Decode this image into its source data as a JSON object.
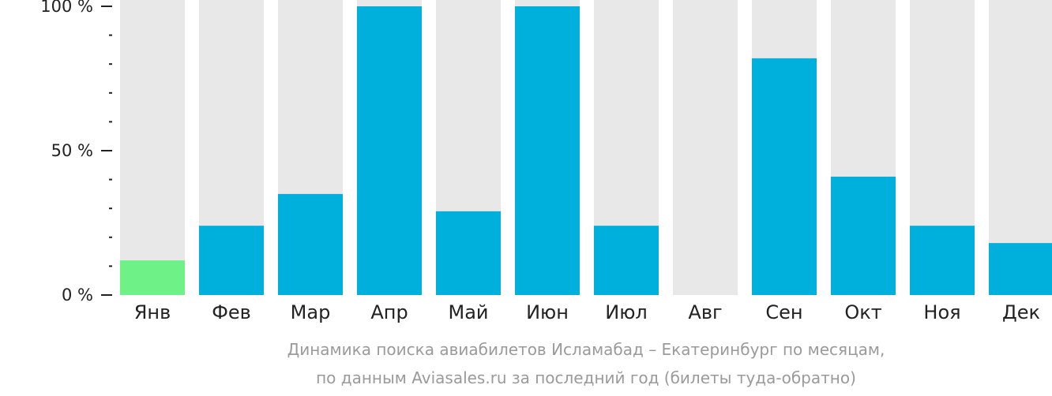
{
  "chart_data": {
    "type": "bar",
    "categories": [
      "Янв",
      "Фев",
      "Мар",
      "Апр",
      "Май",
      "Июн",
      "Июл",
      "Авг",
      "Сен",
      "Окт",
      "Ноя",
      "Дек"
    ],
    "values": [
      12,
      24,
      35,
      100,
      29,
      100,
      24,
      0,
      82,
      41,
      24,
      18
    ],
    "ylim": [
      0,
      100
    ],
    "yticks": [
      {
        "value": 0,
        "label": "0 %"
      },
      {
        "value": 50,
        "label": "50 %"
      },
      {
        "value": 100,
        "label": "100 %"
      }
    ],
    "minor_tick_step": 10,
    "highlight_index": 0,
    "colors": {
      "bar": "#00b0dc",
      "highlight": "#6ef287",
      "background_bar": "#e8e8e8",
      "axis": "#222222"
    },
    "grid": false,
    "legend": "none"
  },
  "caption": {
    "line1": "Динамика поиска авиабилетов Исламабад – Екатеринбург по месяцам,",
    "line2": "по данным Aviasales.ru за последний год (билеты туда-обратно)"
  }
}
